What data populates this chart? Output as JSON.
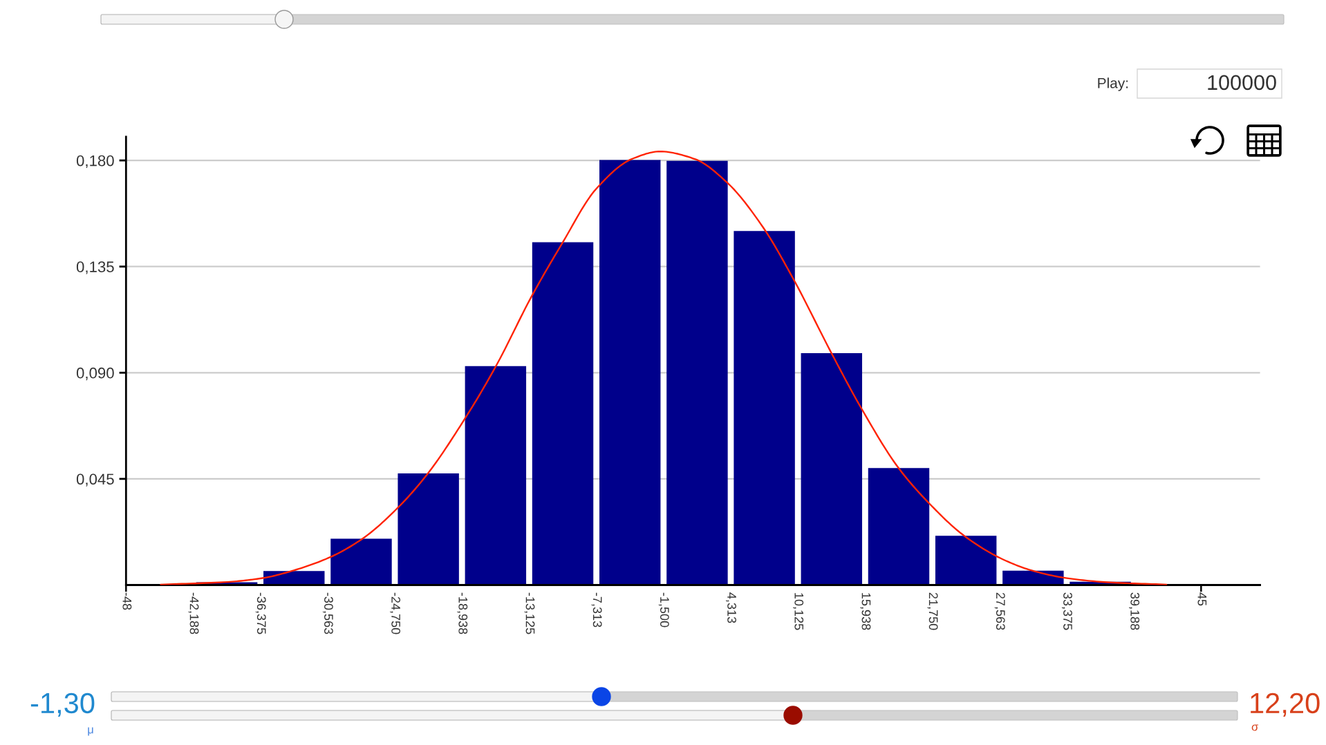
{
  "chart_data": {
    "type": "histogram",
    "bins": [
      -42.188,
      -36.375,
      -30.563,
      -24.75,
      -18.938,
      -13.125,
      -7.313,
      -1.5,
      4.313,
      10.125,
      15.938,
      21.75,
      27.563,
      33.375,
      39.188
    ],
    "series": [
      {
        "color": "#00008b",
        "values": [
          0.0012,
          0.0059,
          0.0196,
          0.0473,
          0.0928,
          0.1453,
          0.1802,
          0.1798,
          0.1501,
          0.0983,
          0.0496,
          0.0209,
          0.0061,
          0.0014
        ]
      },
      {
        "type": "line",
        "color": "#ff2200",
        "x": [
          -45.0,
          -39.2,
          -36.1,
          -33.7,
          -30.3,
          -27.5,
          -24.5,
          -22.0,
          -18.7,
          -16.0,
          -12.9,
          -10.3,
          -7.3,
          -4.2,
          -1.8,
          1.2,
          4.0,
          7.1,
          9.7,
          13.1,
          15.6,
          18.8,
          21.5,
          24.5,
          27.8,
          30.4,
          33.4,
          37.1,
          42.0
        ],
        "values": [
          0.0002,
          0.0013,
          0.003,
          0.0059,
          0.0119,
          0.0198,
          0.0327,
          0.0466,
          0.0704,
          0.0928,
          0.1225,
          0.1446,
          0.1681,
          0.1807,
          0.1838,
          0.1806,
          0.1706,
          0.1517,
          0.13,
          0.0976,
          0.075,
          0.0498,
          0.0345,
          0.0209,
          0.011,
          0.0061,
          0.0029,
          0.0011,
          0.0002
        ]
      }
    ],
    "xlim": [
      -48,
      50.1
    ],
    "ylim": [
      0,
      0.19
    ],
    "xticks": [
      -48,
      {
        "value": -42.188,
        "label": "-42,188"
      },
      {
        "value": -36.375,
        "label": "-36,375"
      },
      {
        "value": -30.563,
        "label": "-30,563"
      },
      {
        "value": -24.75,
        "label": "-24,750"
      },
      {
        "value": -18.938,
        "label": "-18,938"
      },
      {
        "value": -13.125,
        "label": "-13,125"
      },
      {
        "value": -7.313,
        "label": "-7,313"
      },
      {
        "value": -1.5,
        "label": "-1,500"
      },
      {
        "value": 4.313,
        "label": "4,313"
      },
      {
        "value": 10.125,
        "label": "10,125"
      },
      {
        "value": 15.938,
        "label": "15,938"
      },
      {
        "value": 21.75,
        "label": "21,750"
      },
      {
        "value": 27.563,
        "label": "27,563"
      },
      {
        "value": 33.375,
        "label": "33,375"
      },
      {
        "value": 39.188,
        "label": "39,188"
      },
      45
    ],
    "yticks": [
      {
        "value": 0.045,
        "label": "0,045"
      },
      {
        "value": 0.09,
        "label": "0,090"
      },
      {
        "value": 0.135,
        "label": "0,135"
      },
      {
        "value": 0.18,
        "label": "0,180"
      }
    ],
    "grid": "y",
    "annotations": [
      "Play:",
      "100000",
      "-1,30",
      "μ",
      "12,20",
      "σ"
    ]
  }
}
